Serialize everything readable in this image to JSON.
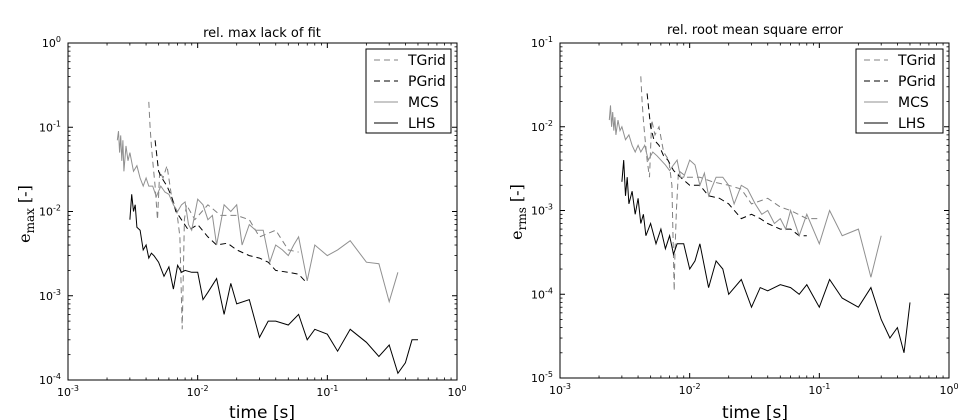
{
  "chart_data": [
    {
      "type": "line",
      "title": "rel. max lack of fit",
      "xlabel": "time [s]",
      "ylabel_main": "e",
      "ylabel_sub": "max",
      "ylabel_unit": "[-]",
      "xscale": "log",
      "yscale": "log",
      "xlim": [
        0.001,
        1
      ],
      "ylim": [
        0.0001,
        1
      ],
      "x_ticks": [
        {
          "value": 0.001,
          "base": "10",
          "exp": "-3"
        },
        {
          "value": 0.01,
          "base": "10",
          "exp": "-2"
        },
        {
          "value": 0.1,
          "base": "10",
          "exp": "-1"
        },
        {
          "value": 1,
          "base": "10",
          "exp": "0"
        }
      ],
      "y_ticks": [
        {
          "value": 0.0001,
          "base": "10",
          "exp": "-4"
        },
        {
          "value": 0.001,
          "base": "10",
          "exp": "-3"
        },
        {
          "value": 0.01,
          "base": "10",
          "exp": "-2"
        },
        {
          "value": 0.1,
          "base": "10",
          "exp": "-1"
        },
        {
          "value": 1,
          "base": "10",
          "exp": "0"
        }
      ],
      "legend_position": "top-right",
      "series": [
        {
          "name": "TGrid",
          "color": "#808080",
          "dash": "dashed",
          "x": [
            0.0042,
            0.0043,
            0.0044,
            0.0045,
            0.0047,
            0.0049,
            0.0051,
            0.0054,
            0.0058,
            0.0063,
            0.0069,
            0.0073,
            0.0076,
            0.0077,
            0.0079,
            0.0082,
            0.0095,
            0.012,
            0.015,
            0.02,
            0.025,
            0.03,
            0.04,
            0.05,
            0.06
          ],
          "y": [
            0.2,
            0.1,
            0.06,
            0.04,
            0.02,
            0.008,
            0.03,
            0.025,
            0.035,
            0.015,
            0.01,
            0.005,
            0.0004,
            0.001,
            0.008,
            0.012,
            0.008,
            0.012,
            0.009,
            0.009,
            0.008,
            0.005,
            0.006,
            0.0035,
            0.0033
          ]
        },
        {
          "name": "PGrid",
          "color": "#000000",
          "dash": "dashed",
          "x": [
            0.0047,
            0.005,
            0.0053,
            0.0058,
            0.0063,
            0.0068,
            0.0075,
            0.0085,
            0.01,
            0.012,
            0.014,
            0.017,
            0.02,
            0.025,
            0.03,
            0.035,
            0.04,
            0.05,
            0.06,
            0.07
          ],
          "y": [
            0.07,
            0.03,
            0.025,
            0.02,
            0.015,
            0.01,
            0.008,
            0.006,
            0.007,
            0.005,
            0.004,
            0.0042,
            0.0035,
            0.003,
            0.0028,
            0.0025,
            0.002,
            0.0019,
            0.0018,
            0.0014
          ]
        },
        {
          "name": "MCS",
          "color": "#909090",
          "dash": "solid",
          "x": [
            0.0024,
            0.00245,
            0.0025,
            0.00255,
            0.0026,
            0.00265,
            0.0027,
            0.0028,
            0.0029,
            0.003,
            0.0032,
            0.0034,
            0.0036,
            0.0038,
            0.004,
            0.0042,
            0.0045,
            0.0048,
            0.0052,
            0.0056,
            0.006,
            0.0065,
            0.007,
            0.0075,
            0.008,
            0.0085,
            0.009,
            0.01,
            0.011,
            0.012,
            0.013,
            0.014,
            0.016,
            0.018,
            0.02,
            0.022,
            0.025,
            0.028,
            0.032,
            0.036,
            0.04,
            0.045,
            0.05,
            0.055,
            0.06,
            0.07,
            0.08,
            0.1,
            0.12,
            0.15,
            0.2,
            0.25,
            0.3,
            0.35
          ],
          "y": [
            0.07,
            0.09,
            0.05,
            0.08,
            0.04,
            0.07,
            0.03,
            0.06,
            0.04,
            0.05,
            0.03,
            0.035,
            0.025,
            0.02,
            0.025,
            0.02,
            0.02,
            0.015,
            0.02,
            0.017,
            0.016,
            0.012,
            0.01,
            0.012,
            0.013,
            0.007,
            0.006,
            0.014,
            0.012,
            0.008,
            0.009,
            0.004,
            0.012,
            0.01,
            0.012,
            0.004,
            0.007,
            0.006,
            0.006,
            0.0025,
            0.004,
            0.0035,
            0.003,
            0.004,
            0.005,
            0.0015,
            0.004,
            0.003,
            0.0035,
            0.0045,
            0.0025,
            0.0024,
            0.00085,
            0.0019
          ]
        },
        {
          "name": "LHS",
          "color": "#000000",
          "dash": "solid",
          "x": [
            0.003,
            0.0031,
            0.0032,
            0.0033,
            0.0034,
            0.0036,
            0.0038,
            0.004,
            0.0042,
            0.0044,
            0.0046,
            0.005,
            0.0055,
            0.006,
            0.0065,
            0.007,
            0.0075,
            0.008,
            0.009,
            0.01,
            0.011,
            0.012,
            0.014,
            0.016,
            0.018,
            0.02,
            0.025,
            0.03,
            0.035,
            0.04,
            0.05,
            0.06,
            0.07,
            0.08,
            0.1,
            0.12,
            0.15,
            0.2,
            0.25,
            0.3,
            0.35,
            0.4,
            0.45,
            0.5
          ],
          "y": [
            0.008,
            0.016,
            0.01,
            0.012,
            0.0065,
            0.006,
            0.0035,
            0.004,
            0.0028,
            0.0032,
            0.003,
            0.0025,
            0.0017,
            0.0022,
            0.0012,
            0.0023,
            0.0019,
            0.002,
            0.0019,
            0.0019,
            0.0009,
            0.0011,
            0.0016,
            0.0006,
            0.0014,
            0.0008,
            0.0009,
            0.00032,
            0.0005,
            0.0005,
            0.00045,
            0.0006,
            0.0003,
            0.0004,
            0.00035,
            0.00022,
            0.0004,
            0.00028,
            0.00019,
            0.00026,
            0.00012,
            0.00016,
            0.0003,
            0.0003
          ]
        }
      ]
    },
    {
      "type": "line",
      "title": "rel. root mean square error",
      "xlabel": "time [s]",
      "ylabel_main": "e",
      "ylabel_sub": "rms",
      "ylabel_unit": "[-]",
      "xscale": "log",
      "yscale": "log",
      "xlim": [
        0.001,
        1
      ],
      "ylim": [
        1e-05,
        0.1
      ],
      "x_ticks": [
        {
          "value": 0.001,
          "base": "10",
          "exp": "-3"
        },
        {
          "value": 0.01,
          "base": "10",
          "exp": "-2"
        },
        {
          "value": 0.1,
          "base": "10",
          "exp": "-1"
        },
        {
          "value": 1,
          "base": "10",
          "exp": "0"
        }
      ],
      "y_ticks": [
        {
          "value": 1e-05,
          "base": "10",
          "exp": "-5"
        },
        {
          "value": 0.0001,
          "base": "10",
          "exp": "-4"
        },
        {
          "value": 0.001,
          "base": "10",
          "exp": "-3"
        },
        {
          "value": 0.01,
          "base": "10",
          "exp": "-2"
        },
        {
          "value": 0.1,
          "base": "10",
          "exp": "-1"
        }
      ],
      "legend_position": "top-right",
      "series": [
        {
          "name": "TGrid",
          "color": "#808080",
          "dash": "dashed",
          "x": [
            0.0042,
            0.0043,
            0.0044,
            0.0045,
            0.0047,
            0.0049,
            0.0051,
            0.0054,
            0.0058,
            0.0063,
            0.0069,
            0.0073,
            0.0076,
            0.0077,
            0.0079,
            0.0082,
            0.0095,
            0.012,
            0.015,
            0.02,
            0.025,
            0.03,
            0.04,
            0.05,
            0.06,
            0.08,
            0.1
          ],
          "y": [
            0.04,
            0.02,
            0.012,
            0.008,
            0.004,
            0.0025,
            0.012,
            0.008,
            0.01,
            0.005,
            0.004,
            0.002,
            0.00011,
            0.0003,
            0.001,
            0.003,
            0.0025,
            0.0025,
            0.0022,
            0.002,
            0.0018,
            0.0012,
            0.0014,
            0.0011,
            0.001,
            0.0008,
            0.0008
          ]
        },
        {
          "name": "PGrid",
          "color": "#000000",
          "dash": "dashed",
          "x": [
            0.0047,
            0.005,
            0.0053,
            0.0058,
            0.0063,
            0.0068,
            0.0075,
            0.0085,
            0.01,
            0.012,
            0.014,
            0.017,
            0.02,
            0.025,
            0.03,
            0.035,
            0.04,
            0.05,
            0.06,
            0.07,
            0.08
          ],
          "y": [
            0.025,
            0.01,
            0.007,
            0.006,
            0.0045,
            0.004,
            0.003,
            0.0025,
            0.002,
            0.002,
            0.0015,
            0.0014,
            0.0012,
            0.0008,
            0.0009,
            0.0008,
            0.0007,
            0.0006,
            0.0006,
            0.0005,
            0.0005
          ]
        },
        {
          "name": "MCS",
          "color": "#909090",
          "dash": "solid",
          "x": [
            0.0024,
            0.00245,
            0.0025,
            0.00255,
            0.0026,
            0.00265,
            0.0027,
            0.0028,
            0.0029,
            0.003,
            0.0032,
            0.0034,
            0.0036,
            0.0038,
            0.004,
            0.0042,
            0.0045,
            0.0048,
            0.0052,
            0.0056,
            0.006,
            0.0065,
            0.007,
            0.0075,
            0.008,
            0.0085,
            0.009,
            0.01,
            0.011,
            0.012,
            0.013,
            0.014,
            0.016,
            0.018,
            0.02,
            0.022,
            0.025,
            0.028,
            0.032,
            0.036,
            0.04,
            0.045,
            0.05,
            0.055,
            0.06,
            0.07,
            0.08,
            0.1,
            0.12,
            0.15,
            0.2,
            0.25,
            0.3
          ],
          "y": [
            0.012,
            0.018,
            0.01,
            0.015,
            0.009,
            0.013,
            0.008,
            0.012,
            0.009,
            0.01,
            0.007,
            0.008,
            0.006,
            0.005,
            0.006,
            0.005,
            0.006,
            0.004,
            0.005,
            0.0045,
            0.004,
            0.0035,
            0.003,
            0.0035,
            0.004,
            0.0025,
            0.0025,
            0.004,
            0.0035,
            0.002,
            0.0028,
            0.0015,
            0.0025,
            0.0025,
            0.002,
            0.0012,
            0.002,
            0.0018,
            0.0012,
            0.0009,
            0.001,
            0.0007,
            0.0008,
            0.0006,
            0.001,
            0.0005,
            0.0009,
            0.0004,
            0.001,
            0.0005,
            0.0006,
            0.00016,
            0.0005
          ]
        },
        {
          "name": "LHS",
          "color": "#000000",
          "dash": "solid",
          "x": [
            0.003,
            0.0031,
            0.0032,
            0.0033,
            0.0034,
            0.0036,
            0.0038,
            0.004,
            0.0042,
            0.0044,
            0.0046,
            0.005,
            0.0055,
            0.006,
            0.0065,
            0.007,
            0.0075,
            0.008,
            0.009,
            0.01,
            0.011,
            0.012,
            0.014,
            0.016,
            0.018,
            0.02,
            0.025,
            0.03,
            0.035,
            0.04,
            0.05,
            0.06,
            0.07,
            0.08,
            0.1,
            0.12,
            0.15,
            0.2,
            0.25,
            0.3,
            0.35,
            0.4,
            0.45,
            0.5
          ],
          "y": [
            0.0022,
            0.004,
            0.0015,
            0.0025,
            0.0012,
            0.0017,
            0.0009,
            0.0014,
            0.0007,
            0.0009,
            0.0005,
            0.0007,
            0.0004,
            0.0006,
            0.00035,
            0.0005,
            0.0003,
            0.0004,
            0.0004,
            0.0002,
            0.00025,
            0.0004,
            0.00012,
            0.00025,
            0.0002,
            0.0001,
            0.00015,
            7e-05,
            0.00012,
            0.00011,
            0.00013,
            0.00012,
            0.0001,
            0.00013,
            7e-05,
            0.00015,
            9e-05,
            7e-05,
            0.00012,
            5e-05,
            3e-05,
            4e-05,
            2e-05,
            8e-05
          ]
        }
      ]
    }
  ]
}
